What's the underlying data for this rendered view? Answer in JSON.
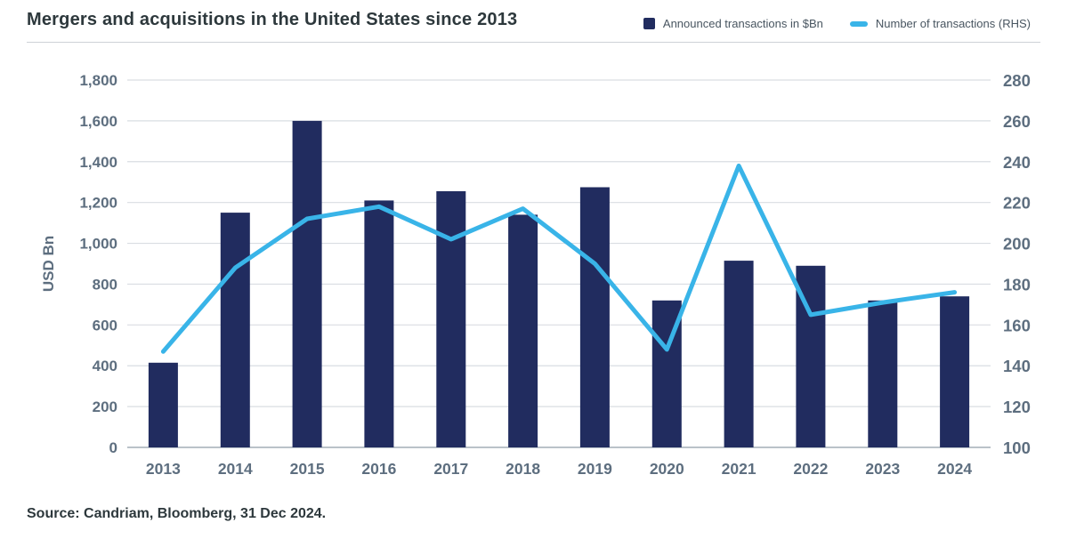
{
  "header": {
    "title": "Mergers and acquisitions in the United States since 2013"
  },
  "legend": {
    "items": [
      {
        "label": "Announced transactions in $Bn",
        "marker": "square"
      },
      {
        "label": "Number of transactions (RHS)",
        "marker": "dash"
      }
    ]
  },
  "footer": {
    "source": "Source: Candriam, Bloomberg, 31 Dec 2024."
  },
  "colors": {
    "bar": "#212c5f",
    "line": "#39b4e8",
    "grid": "#d9dde2",
    "axis_line": "#a4adb7",
    "tick_text": "#5d6e7f",
    "title_text": "#2d383c"
  },
  "chart_data": {
    "type": "bar",
    "subtype": "bar+line combo, dual axis",
    "title": "Mergers and acquisitions in the United States since 2013",
    "categories": [
      "2013",
      "2014",
      "2015",
      "2016",
      "2017",
      "2018",
      "2019",
      "2020",
      "2021",
      "2022",
      "2023",
      "2024"
    ],
    "series": [
      {
        "name": "Announced transactions in $Bn",
        "type": "bar",
        "axis": "left",
        "values": [
          415,
          1150,
          1600,
          1210,
          1255,
          1140,
          1275,
          720,
          915,
          890,
          720,
          740
        ]
      },
      {
        "name": "Number of transactions (RHS)",
        "type": "line",
        "axis": "right",
        "values": [
          147,
          188,
          212,
          218,
          202,
          217,
          190,
          148,
          238,
          165,
          171,
          176
        ]
      }
    ],
    "left_axis": {
      "title": "USD Bn",
      "min": 0,
      "max": 1800,
      "step": 200
    },
    "right_axis": {
      "min": 100,
      "max": 280,
      "step": 20
    },
    "grid": true,
    "legend_position": "top-right"
  }
}
